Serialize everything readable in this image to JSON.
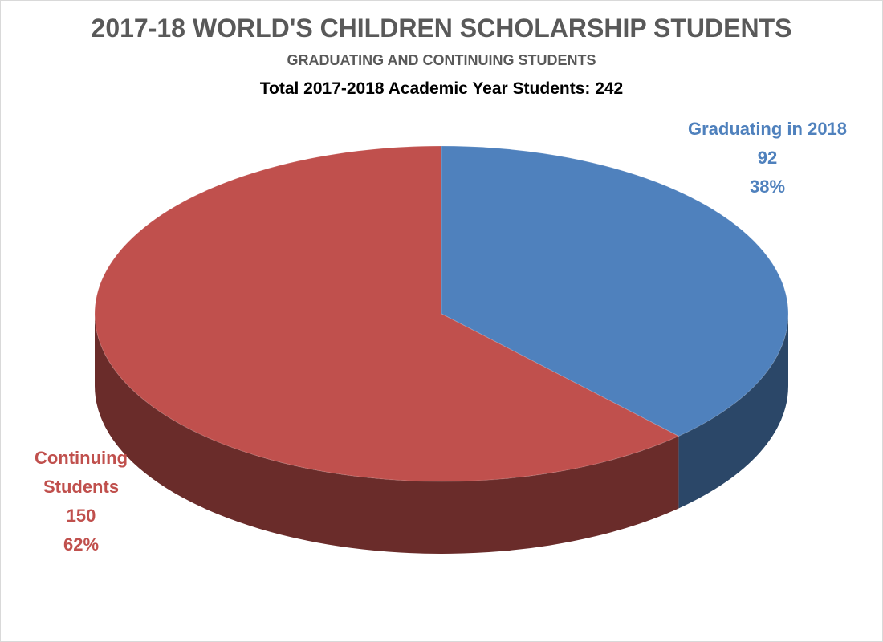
{
  "chart_data": {
    "type": "pie",
    "title": "2017-18 WORLD'S CHILDREN SCHOLARSHIP STUDENTS",
    "subtitle": "GRADUATING AND CONTINUING STUDENTS",
    "annotation": "Total 2017-2018 Academic Year Students: 242",
    "categories": [
      "Graduating in 2018",
      "Continuing Students"
    ],
    "values": [
      92,
      150
    ],
    "percent_labels": [
      "38%",
      "62%"
    ],
    "colors": [
      "#4f81bd",
      "#c0504d"
    ]
  }
}
